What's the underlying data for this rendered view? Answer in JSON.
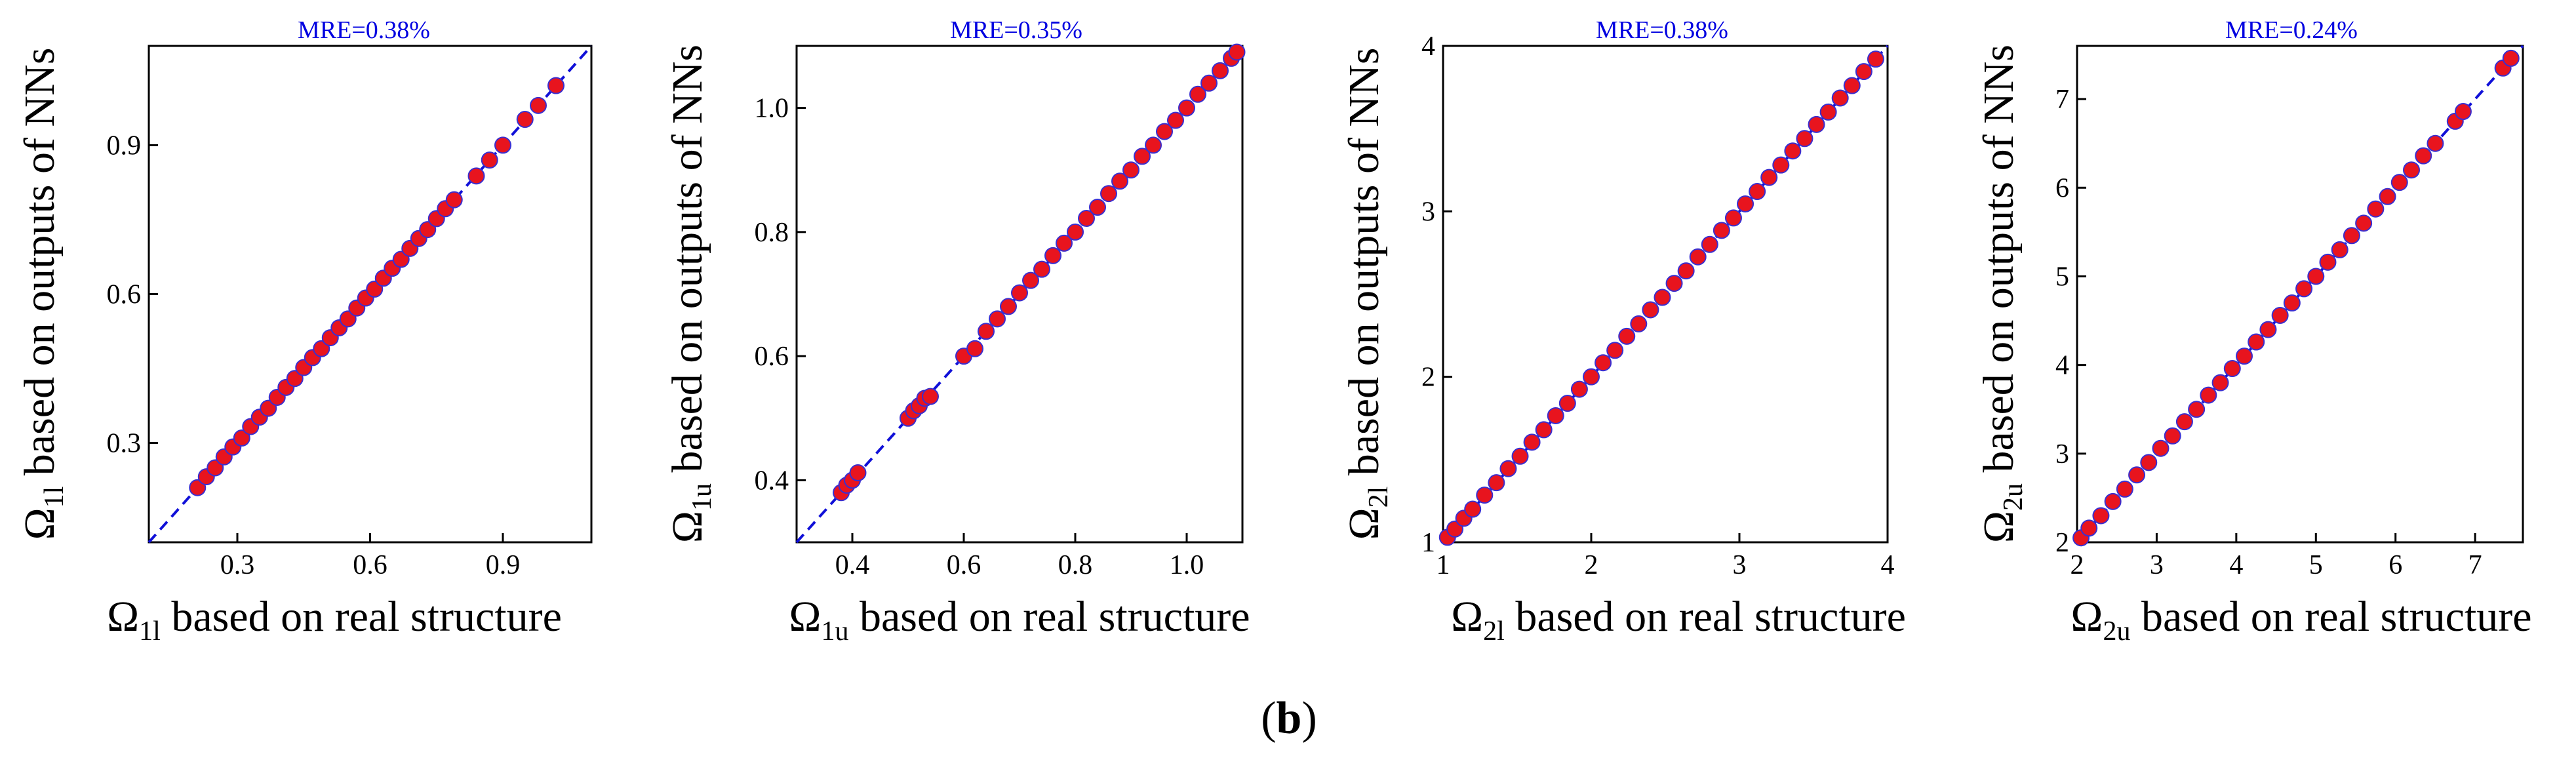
{
  "figure_label": "(b)",
  "figure_label_parts": {
    "open": "(",
    "letter": "b",
    "close": ")"
  },
  "colors": {
    "point_fill": "#e8141e",
    "point_stroke": "#3a2fd0",
    "diagonal": "#1010d8",
    "mre_text": "#0000e0",
    "axis": "#000000"
  },
  "chart_data": [
    {
      "type": "scatter",
      "title": "MRE=0.38%",
      "xlabel": {
        "symbol": "Ω",
        "subscript": "1l",
        "text": " based on real structure"
      },
      "ylabel": {
        "symbol": "Ω",
        "subscript": "1l",
        "text": " based on outputs of NNs"
      },
      "xlim": [
        0.1,
        1.1
      ],
      "ylim": [
        0.1,
        1.1
      ],
      "xticks": [
        0.3,
        0.6,
        0.9
      ],
      "yticks": [
        0.3,
        0.6,
        0.9
      ],
      "xtick_labels": [
        "0.3",
        "0.6",
        "0.9"
      ],
      "ytick_labels": [
        "0.3",
        "0.6",
        "0.9"
      ],
      "reference_line": "y = x (dashed)",
      "x": [
        0.21,
        0.23,
        0.25,
        0.27,
        0.29,
        0.31,
        0.33,
        0.35,
        0.37,
        0.39,
        0.41,
        0.43,
        0.45,
        0.47,
        0.49,
        0.51,
        0.53,
        0.55,
        0.57,
        0.59,
        0.61,
        0.63,
        0.65,
        0.67,
        0.69,
        0.71,
        0.73,
        0.75,
        0.77,
        0.79,
        0.84,
        0.87,
        0.9,
        0.95,
        0.98,
        1.02
      ],
      "y": [
        0.21,
        0.232,
        0.25,
        0.272,
        0.292,
        0.31,
        0.333,
        0.352,
        0.37,
        0.392,
        0.412,
        0.43,
        0.452,
        0.472,
        0.49,
        0.512,
        0.532,
        0.55,
        0.572,
        0.592,
        0.61,
        0.632,
        0.652,
        0.67,
        0.692,
        0.712,
        0.73,
        0.752,
        0.772,
        0.79,
        0.838,
        0.87,
        0.9,
        0.952,
        0.98,
        1.02
      ]
    },
    {
      "type": "scatter",
      "title": "MRE=0.35%",
      "xlabel": {
        "symbol": "Ω",
        "subscript": "1u",
        "text": " based on real structure"
      },
      "ylabel": {
        "symbol": "Ω",
        "subscript": "1u",
        "text": " based on outputs of NNs"
      },
      "xlim": [
        0.3,
        1.1
      ],
      "ylim": [
        0.3,
        1.1
      ],
      "xticks": [
        0.4,
        0.6,
        0.8,
        1.0
      ],
      "yticks": [
        0.4,
        0.6,
        0.8,
        1.0
      ],
      "xtick_labels": [
        "0.4",
        "0.6",
        "0.8",
        "1.0"
      ],
      "ytick_labels": [
        "0.4",
        "0.6",
        "0.8",
        "1.0"
      ],
      "reference_line": "y = x (dashed)",
      "x": [
        0.38,
        0.39,
        0.4,
        0.41,
        0.5,
        0.51,
        0.52,
        0.53,
        0.54,
        0.6,
        0.62,
        0.64,
        0.66,
        0.68,
        0.7,
        0.72,
        0.74,
        0.76,
        0.78,
        0.8,
        0.82,
        0.84,
        0.86,
        0.88,
        0.9,
        0.92,
        0.94,
        0.96,
        0.98,
        1.0,
        1.02,
        1.04,
        1.06,
        1.08,
        1.09
      ],
      "y": [
        0.38,
        0.392,
        0.4,
        0.412,
        0.5,
        0.512,
        0.52,
        0.532,
        0.535,
        0.6,
        0.612,
        0.64,
        0.66,
        0.68,
        0.702,
        0.722,
        0.74,
        0.762,
        0.782,
        0.8,
        0.822,
        0.84,
        0.862,
        0.882,
        0.9,
        0.922,
        0.94,
        0.962,
        0.98,
        1.0,
        1.022,
        1.04,
        1.06,
        1.08,
        1.09
      ]
    },
    {
      "type": "scatter",
      "title": "MRE=0.38%",
      "xlabel": {
        "symbol": "Ω",
        "subscript": "2l",
        "text": " based on real structure"
      },
      "ylabel": {
        "symbol": "Ω",
        "subscript": "2l",
        "text": " based on outputs of NNs"
      },
      "xlim": [
        1,
        4
      ],
      "ylim": [
        1,
        4
      ],
      "xticks": [
        1,
        2,
        3,
        4
      ],
      "yticks": [
        1,
        2,
        3,
        4
      ],
      "xtick_labels": [
        "1",
        "2",
        "3",
        "4"
      ],
      "ytick_labels": [
        "1",
        "2",
        "3",
        "4"
      ],
      "reference_line": "y = x (dashed)",
      "x": [
        1.03,
        1.08,
        1.14,
        1.2,
        1.28,
        1.36,
        1.44,
        1.52,
        1.6,
        1.68,
        1.76,
        1.84,
        1.92,
        2.0,
        2.08,
        2.16,
        2.24,
        2.32,
        2.4,
        2.48,
        2.56,
        2.64,
        2.72,
        2.8,
        2.88,
        2.96,
        3.04,
        3.12,
        3.2,
        3.28,
        3.36,
        3.44,
        3.52,
        3.6,
        3.68,
        3.76,
        3.84,
        3.92
      ],
      "y": [
        1.03,
        1.08,
        1.145,
        1.2,
        1.285,
        1.36,
        1.445,
        1.52,
        1.605,
        1.68,
        1.765,
        1.84,
        1.925,
        2.0,
        2.085,
        2.16,
        2.245,
        2.32,
        2.405,
        2.48,
        2.565,
        2.64,
        2.725,
        2.8,
        2.885,
        2.96,
        3.045,
        3.12,
        3.205,
        3.28,
        3.365,
        3.44,
        3.525,
        3.6,
        3.685,
        3.76,
        3.845,
        3.92
      ]
    },
    {
      "type": "scatter",
      "title": "MRE=0.24%",
      "xlabel": {
        "symbol": "Ω",
        "subscript": "2u",
        "text": " based on real structure"
      },
      "ylabel": {
        "symbol": "Ω",
        "subscript": "2u",
        "text": " based on outputs of NNs"
      },
      "xlim": [
        2,
        7.6
      ],
      "ylim": [
        2,
        7.6
      ],
      "xticks": [
        2,
        3,
        4,
        5,
        6,
        7
      ],
      "yticks": [
        2,
        3,
        4,
        5,
        6,
        7
      ],
      "xtick_labels": [
        "2",
        "3",
        "4",
        "5",
        "6",
        "7"
      ],
      "ytick_labels": [
        "2",
        "3",
        "4",
        "5",
        "6",
        "7"
      ],
      "reference_line": "y = x (dashed)",
      "x": [
        2.05,
        2.15,
        2.3,
        2.45,
        2.6,
        2.75,
        2.9,
        3.05,
        3.2,
        3.35,
        3.5,
        3.65,
        3.8,
        3.95,
        4.1,
        4.25,
        4.4,
        4.55,
        4.7,
        4.85,
        5.0,
        5.15,
        5.3,
        5.45,
        5.6,
        5.75,
        5.9,
        6.05,
        6.2,
        6.35,
        6.5,
        6.75,
        6.85,
        7.35,
        7.45
      ],
      "y": [
        2.05,
        2.16,
        2.3,
        2.46,
        2.6,
        2.76,
        2.9,
        3.06,
        3.2,
        3.36,
        3.5,
        3.66,
        3.8,
        3.96,
        4.1,
        4.26,
        4.4,
        4.56,
        4.7,
        4.86,
        5.0,
        5.16,
        5.3,
        5.46,
        5.6,
        5.76,
        5.9,
        6.06,
        6.2,
        6.36,
        6.5,
        6.75,
        6.86,
        7.35,
        7.46
      ]
    }
  ]
}
